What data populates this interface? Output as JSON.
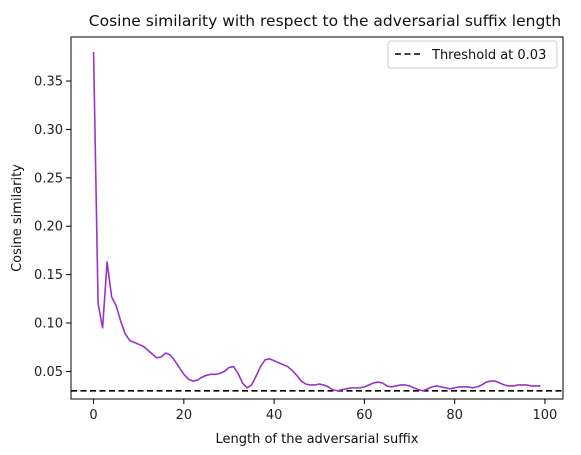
{
  "chart_data": {
    "type": "line",
    "title": "Cosine similarity with respect to the adversarial suffix length",
    "xlabel": "Length of the adversarial suffix",
    "ylabel": "Cosine similarity",
    "xlim": [
      -5,
      104
    ],
    "ylim": [
      0.0215,
      0.3955
    ],
    "x_ticks": [
      0,
      20,
      40,
      60,
      80,
      100
    ],
    "x_tick_labels": [
      "0",
      "20",
      "40",
      "60",
      "80",
      "100"
    ],
    "y_ticks": [
      0.05,
      0.1,
      0.15,
      0.2,
      0.25,
      0.3,
      0.35
    ],
    "y_tick_labels": [
      "0.05",
      "0.10",
      "0.15",
      "0.20",
      "0.25",
      "0.30",
      "0.35"
    ],
    "grid": false,
    "legend_position": "top-right",
    "series": [
      {
        "color": "#9932CC",
        "x": [
          0,
          1,
          2,
          3,
          4,
          5,
          6,
          7,
          8,
          9,
          10,
          11,
          12,
          13,
          14,
          15,
          16,
          17,
          18,
          19,
          20,
          21,
          22,
          23,
          24,
          25,
          26,
          27,
          28,
          29,
          30,
          31,
          32,
          33,
          34,
          35,
          36,
          37,
          38,
          39,
          40,
          41,
          42,
          43,
          44,
          45,
          46,
          47,
          48,
          49,
          50,
          51,
          52,
          53,
          54,
          55,
          56,
          57,
          58,
          59,
          60,
          61,
          62,
          63,
          64,
          65,
          66,
          67,
          68,
          69,
          70,
          71,
          72,
          73,
          74,
          75,
          76,
          77,
          78,
          79,
          80,
          81,
          82,
          83,
          84,
          85,
          86,
          87,
          88,
          89,
          90,
          91,
          92,
          93,
          94,
          95,
          96,
          97,
          98,
          99
        ],
        "y": [
          0.38,
          0.12,
          0.095,
          0.163,
          0.127,
          0.118,
          0.102,
          0.089,
          0.082,
          0.08,
          0.078,
          0.076,
          0.072,
          0.068,
          0.064,
          0.065,
          0.069,
          0.067,
          0.061,
          0.054,
          0.047,
          0.042,
          0.04,
          0.041,
          0.044,
          0.046,
          0.047,
          0.047,
          0.048,
          0.05,
          0.054,
          0.055,
          0.048,
          0.038,
          0.033,
          0.036,
          0.045,
          0.055,
          0.062,
          0.063,
          0.061,
          0.059,
          0.057,
          0.055,
          0.051,
          0.046,
          0.04,
          0.037,
          0.036,
          0.036,
          0.037,
          0.036,
          0.034,
          0.031,
          0.03,
          0.031,
          0.032,
          0.033,
          0.033,
          0.033,
          0.034,
          0.036,
          0.038,
          0.039,
          0.038,
          0.035,
          0.034,
          0.035,
          0.036,
          0.036,
          0.035,
          0.033,
          0.031,
          0.03,
          0.032,
          0.034,
          0.035,
          0.034,
          0.033,
          0.032,
          0.033,
          0.034,
          0.034,
          0.034,
          0.033,
          0.034,
          0.036,
          0.039,
          0.04,
          0.04,
          0.038,
          0.036,
          0.035,
          0.035,
          0.036,
          0.036,
          0.036,
          0.035,
          0.035,
          0.035
        ]
      }
    ],
    "threshold": {
      "y": 0.03,
      "label": "Threshold at 0.03",
      "color": "#000000"
    }
  }
}
